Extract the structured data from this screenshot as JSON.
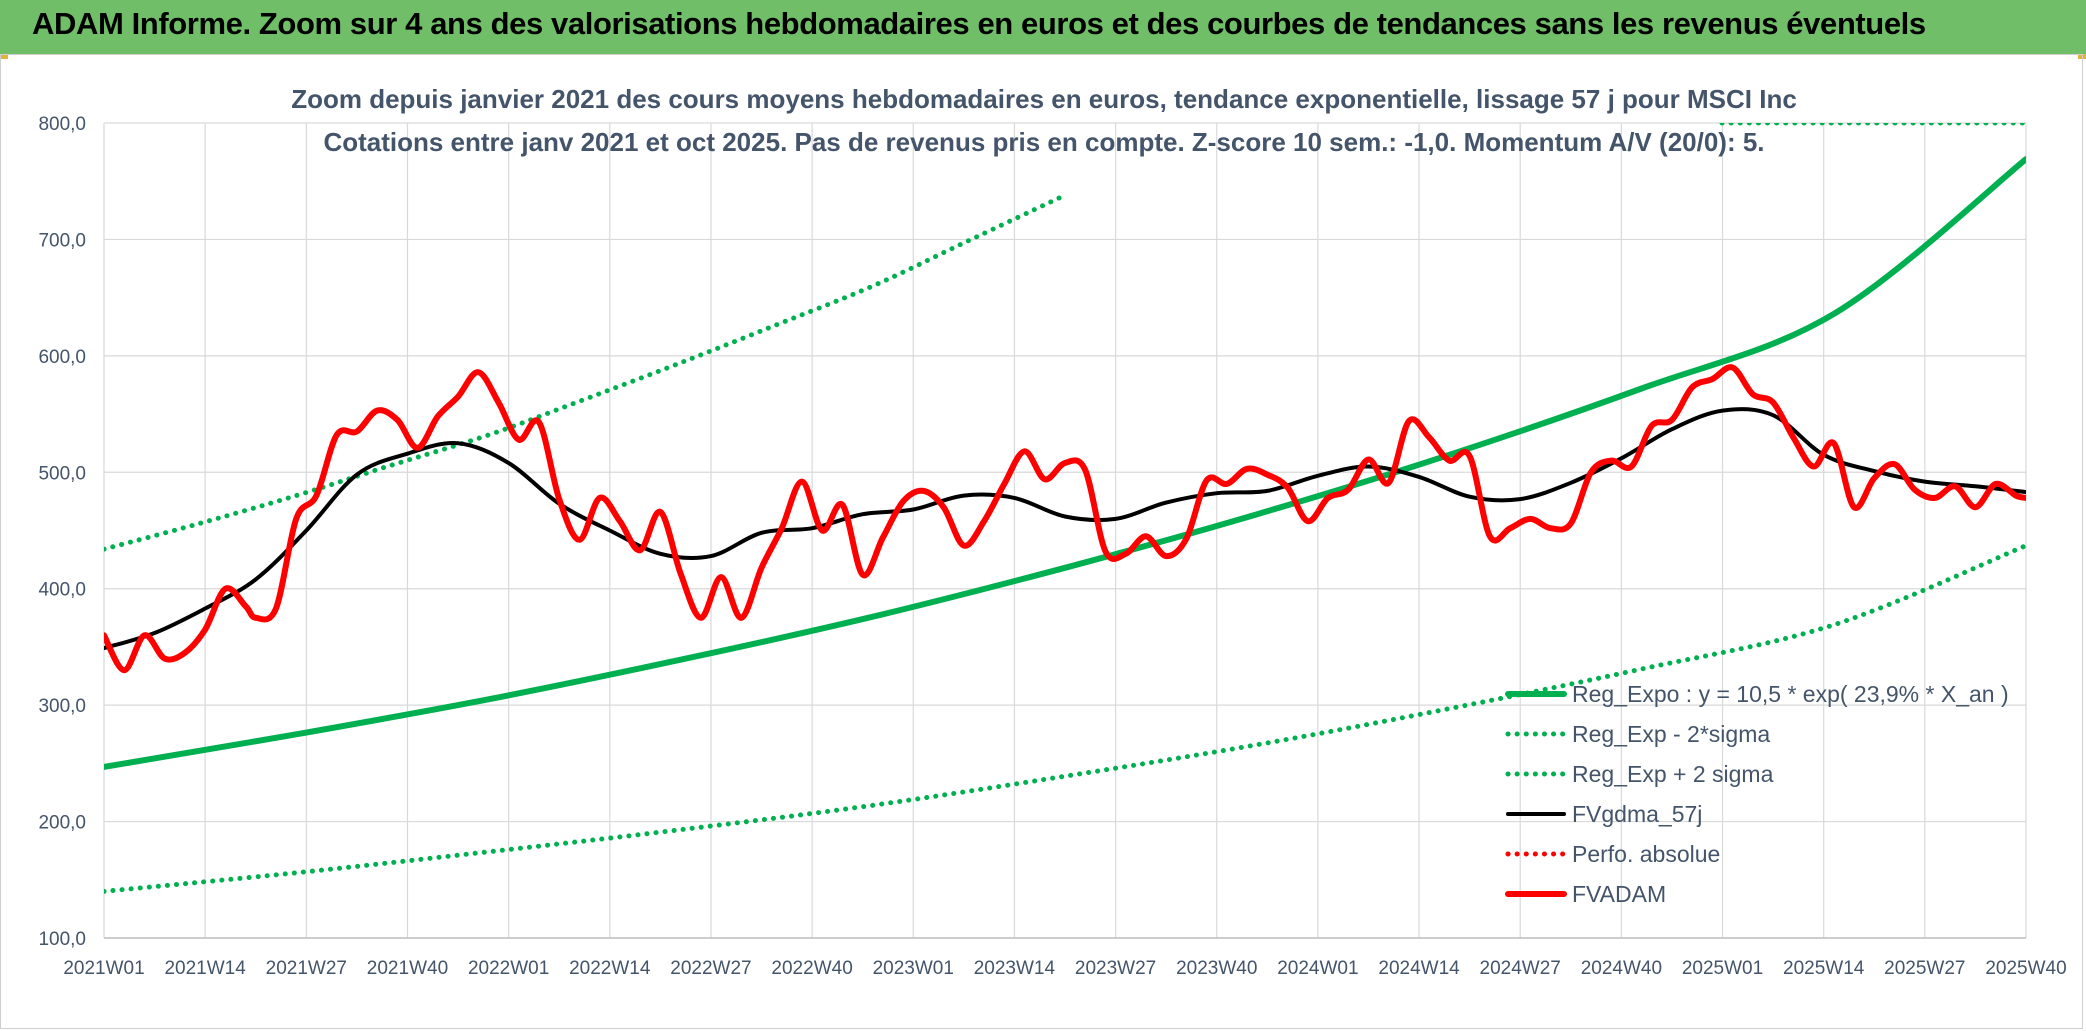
{
  "header": {
    "title": "ADAM Informe. Zoom sur 4 ans des valorisations hebdomadaires en euros et des courbes de tendances sans les revenus éventuels"
  },
  "colors": {
    "header_bg": "#70bf68",
    "reg_expo": "#00b050",
    "fvgdma": "#000000",
    "fvadam": "#ff0000",
    "text": "#44546a",
    "grid": "#d9d9d9"
  },
  "chart_data": {
    "type": "line",
    "title_lines": [
      "Zoom depuis janvier 2021 des cours moyens hebdomadaires en euros, tendance exponentielle, lissage 57 j pour MSCI Inc",
      "Cotations entre janv 2021 et oct 2025. Pas de revenus pris en compte. Z-score 10 sem.: -1,0. Momentum A/V (20/0): 5."
    ],
    "xlabel": "",
    "ylabel": "",
    "ylim": [
      100,
      800
    ],
    "y_ticks": [
      100,
      200,
      300,
      400,
      500,
      600,
      700,
      800
    ],
    "y_tick_labels": [
      "100,0",
      "200,0",
      "300,0",
      "400,0",
      "500,0",
      "600,0",
      "700,0",
      "800,0"
    ],
    "x_tick_labels": [
      "2021W01",
      "2021W14",
      "2021W27",
      "2021W40",
      "2022W01",
      "2022W14",
      "2022W27",
      "2022W40",
      "2023W01",
      "2023W14",
      "2023W27",
      "2023W40",
      "2024W01",
      "2024W14",
      "2024W27",
      "2024W40",
      "2025W01",
      "2025W14",
      "2025W27",
      "2025W40"
    ],
    "grid": true,
    "legend_position": "bottom-right",
    "series": [
      {
        "name": "Reg_Expo : y = 10,5 * exp( 23,9% *  X_an )",
        "style": "solid-thick",
        "color": "#00b050",
        "x": [
          0,
          19,
          38,
          57,
          76,
          95,
          114,
          133,
          152,
          171,
          190
        ],
        "values": [
          247,
          275,
          305,
          339,
          376,
          418,
          464,
          515,
          572,
          636,
          769
        ]
      },
      {
        "name": "Reg_Exp - 2*sigma",
        "style": "dotted",
        "color": "#00b050",
        "x": [
          0,
          19,
          38,
          57,
          76,
          95,
          114,
          133,
          152,
          171,
          190
        ],
        "values": [
          140,
          156,
          174,
          193,
          214,
          239,
          266,
          297,
          331,
          369,
          437
        ]
      },
      {
        "name": "Reg_Exp + 2 sigma",
        "style": "dotted",
        "color": "#00b050",
        "x": [
          0,
          9,
          19,
          28,
          38,
          47,
          57,
          66,
          76,
          85,
          95
        ],
        "values": [
          434,
          455,
          480,
          505,
          532,
          561,
          594,
          625,
          660,
          697,
          738
        ]
      },
      {
        "name": "FVgdma_57j",
        "style": "solid",
        "color": "#000000",
        "x": [
          0,
          5,
          10,
          15,
          20,
          25,
          30,
          35,
          40,
          45,
          50,
          55,
          60,
          65,
          70,
          75,
          80,
          85,
          90,
          95,
          100,
          105,
          110,
          115,
          120,
          125,
          130,
          135,
          140,
          145,
          150,
          155,
          160,
          165,
          170,
          175,
          180,
          185,
          190
        ],
        "values": [
          349,
          362,
          383,
          408,
          450,
          498,
          516,
          525,
          508,
          473,
          450,
          430,
          428,
          448,
          452,
          464,
          468,
          480,
          478,
          462,
          460,
          474,
          482,
          484,
          497,
          505,
          496,
          479,
          477,
          491,
          512,
          537,
          553,
          549,
          515,
          501,
          492,
          488,
          483
        ]
      },
      {
        "name": "Perfo. absolue",
        "style": "dotted",
        "color": "#ff0000",
        "x": [],
        "values": []
      },
      {
        "name": "FVADAM",
        "style": "solid-thick",
        "color": "#ff0000",
        "x": [
          0,
          2,
          4,
          6,
          8,
          10,
          12,
          14,
          15,
          17,
          19,
          21,
          23,
          25,
          27,
          29,
          31,
          33,
          35,
          37,
          39,
          41,
          43,
          45,
          47,
          49,
          51,
          53,
          55,
          57,
          59,
          61,
          63,
          65,
          67,
          69,
          71,
          73,
          75,
          77,
          79,
          81,
          83,
          85,
          87,
          89,
          91,
          93,
          95,
          97,
          99,
          101,
          103,
          105,
          107,
          109,
          111,
          113,
          115,
          117,
          119,
          121,
          123,
          125,
          127,
          129,
          131,
          133,
          135,
          137,
          139,
          141,
          143,
          145,
          147,
          149,
          151,
          153,
          155,
          157,
          159,
          161,
          163,
          165,
          167,
          169,
          171,
          173,
          175,
          177,
          179,
          181,
          183,
          185,
          187,
          189,
          190
        ],
        "values": [
          360,
          330,
          360,
          340,
          345,
          365,
          400,
          385,
          375,
          383,
          460,
          480,
          532,
          535,
          553,
          545,
          521,
          548,
          565,
          586,
          560,
          528,
          543,
          477,
          442,
          478,
          458,
          433,
          466,
          413,
          375,
          410,
          375,
          418,
          452,
          492,
          450,
          472,
          412,
          444,
          475,
          484,
          470,
          437,
          458,
          490,
          518,
          494,
          508,
          502,
          432,
          430,
          445,
          428,
          443,
          493,
          490,
          503,
          498,
          487,
          458,
          478,
          485,
          511,
          491,
          544,
          530,
          510,
          514,
          445,
          452,
          460,
          452,
          456,
          500,
          510,
          505,
          540,
          545,
          573,
          580,
          590,
          567,
          560,
          530,
          505,
          525,
          470,
          495,
          507,
          485,
          478,
          488,
          470,
          490,
          480,
          478
        ]
      }
    ]
  }
}
